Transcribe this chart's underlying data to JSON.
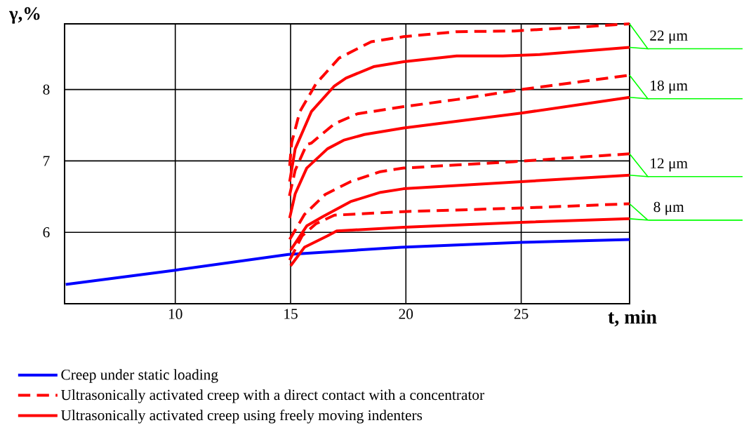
{
  "chart_data": {
    "type": "line",
    "xlabel": "t, min",
    "ylabel": "γ,%",
    "xlim": [
      5.2,
      29.7
    ],
    "ylim": [
      5,
      8.92
    ],
    "xticks": [
      10,
      15,
      20,
      25
    ],
    "yticks": [
      6,
      7,
      8
    ],
    "grid": true,
    "legend": "bottom",
    "series": [
      {
        "name": "Creep under static loading",
        "color": "#0000ff",
        "line_style": "solid",
        "x": [
          5.25,
          10,
          14.9,
          19.8,
          25,
          29.7
        ],
        "values": [
          5.27,
          5.47,
          5.69,
          5.79,
          5.86,
          5.9
        ]
      },
      {
        "name": "Ultrasonically activated creep with a direct contact with a concentrator",
        "color": "#ff0000",
        "line_style": "dashed",
        "x": [
          14.96,
          15.05,
          15.4,
          16.1,
          17.1,
          18.5,
          19.9,
          22.2,
          24.7,
          26.8,
          29.7
        ],
        "values": [
          6.93,
          7.26,
          7.69,
          8.08,
          8.44,
          8.67,
          8.74,
          8.81,
          8.82,
          8.86,
          8.92
        ]
      },
      {
        "name": "Ultrasonically activated creep using freely moving indenters",
        "color": "#ff0000",
        "line_style": "solid",
        "x": [
          14.96,
          15.2,
          15.9,
          16.9,
          17.4,
          18.6,
          19.9,
          22.2,
          24.2,
          25.8,
          29.7
        ],
        "values": [
          6.71,
          7.17,
          7.69,
          8.05,
          8.16,
          8.32,
          8.39,
          8.47,
          8.47,
          8.49,
          8.59
        ]
      },
      {
        "color": "#ff0000",
        "line_style": "dashed",
        "x": [
          14.95,
          15.2,
          15.7,
          15.9,
          16.9,
          17.9,
          19.9,
          22.2,
          25,
          29.7
        ],
        "values": [
          6.51,
          6.87,
          7.23,
          7.25,
          7.52,
          7.66,
          7.76,
          7.86,
          8.0,
          8.2
        ]
      },
      {
        "color": "#ff0000",
        "line_style": "solid",
        "x": [
          14.96,
          15.2,
          15.7,
          16.6,
          17.3,
          18.2,
          19.9,
          25,
          29.7
        ],
        "values": [
          6.2,
          6.54,
          6.9,
          7.17,
          7.29,
          7.37,
          7.46,
          7.67,
          7.89
        ]
      },
      {
        "color": "#ff0000",
        "line_style": "dashed",
        "x": [
          14.96,
          15.6,
          16.5,
          17.6,
          18.9,
          19.9,
          24.7,
          29.7
        ],
        "values": [
          5.9,
          6.25,
          6.53,
          6.71,
          6.85,
          6.9,
          6.99,
          7.1
        ]
      },
      {
        "color": "#ff0000",
        "line_style": "solid",
        "x": [
          15,
          15.7,
          16.4,
          17.6,
          18.9,
          19.9,
          25,
          29.7
        ],
        "values": [
          5.75,
          6.09,
          6.22,
          6.43,
          6.56,
          6.61,
          6.71,
          6.8
        ]
      },
      {
        "color": "#ff0000",
        "line_style": "dashed",
        "x": [
          14.96,
          15.5,
          16.1,
          16.9,
          19.9,
          25,
          29.7
        ],
        "values": [
          5.61,
          5.95,
          6.12,
          6.24,
          6.29,
          6.34,
          6.4
        ]
      },
      {
        "color": "#ff0000",
        "line_style": "solid",
        "x": [
          15,
          15.6,
          16.6,
          17,
          19.9,
          25,
          29.7
        ],
        "values": [
          5.53,
          5.79,
          5.95,
          6.02,
          6.07,
          6.14,
          6.19
        ]
      }
    ],
    "annotations": [
      "22 μm",
      "18 μm",
      "12 μm",
      "8 μm"
    ]
  }
}
